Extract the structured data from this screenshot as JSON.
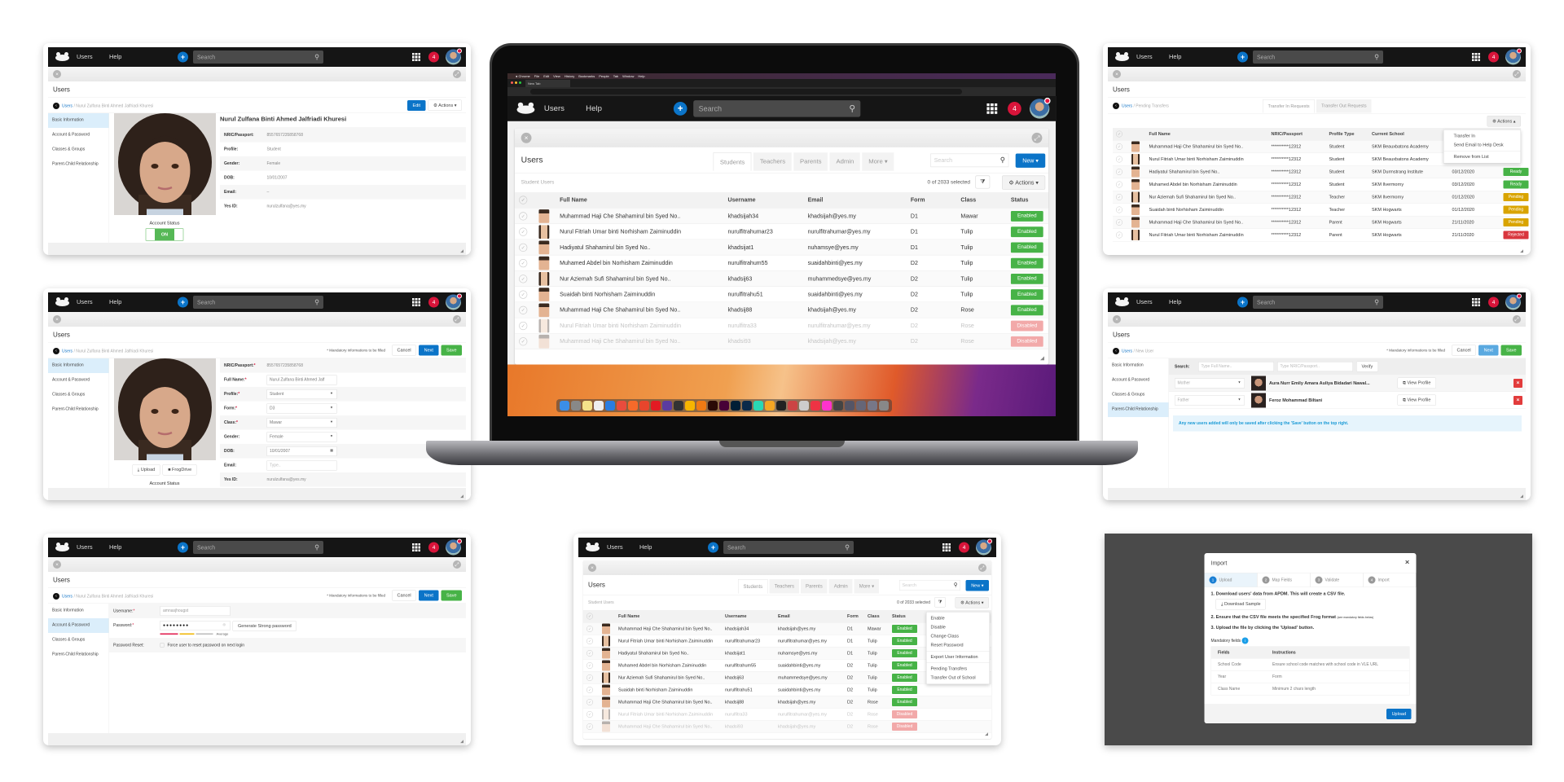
{
  "nav": {
    "title": "Users",
    "help": "Help",
    "search_placeholder": "Search",
    "notif_count": "4"
  },
  "common": {
    "page_title": "Users",
    "breadcrumb_root": "Users",
    "actions": "Actions",
    "edit": "Edit",
    "cancel": "Cancel",
    "next": "Next",
    "save": "Save",
    "mandatory_note": "* Mandatory informations to be filled",
    "sidebar": [
      "Basic Information",
      "Account & Password",
      "Classes & Groups",
      "Parent-Child Relationship"
    ]
  },
  "profile": {
    "breadcrumb_current": "Nurul Zulfana Binti Ahmed Jalfriadi Khuresi",
    "name": "Nurul Zulfana Binti Ahmed Jalfriadi Khuresi",
    "fields": [
      {
        "label": "NRIC/Passport:",
        "value": "8557657235858768"
      },
      {
        "label": "Profile:",
        "value": "Student"
      },
      {
        "label": "Gender:",
        "value": "Female"
      },
      {
        "label": "DOB:",
        "value": "10/01/2007"
      },
      {
        "label": "Email:",
        "value": "–"
      },
      {
        "label": "Yes ID:",
        "value": "nurulzulfana@yes.my"
      }
    ],
    "account_status": "Account Status",
    "toggle_on": "ON"
  },
  "edit_form": {
    "nric_label": "NRIC/Passport:",
    "nric_value": "8557657235858768",
    "fullname_label": "Full Name:",
    "fullname_value": "Nurul Zulfana Binti Ahmed Jalf",
    "profile_label": "Profile:",
    "profile_value": "Student",
    "form_label": "Form:",
    "form_value": "D3",
    "class_label": "Class:",
    "class_value": "Mawar",
    "gender_label": "Gender:",
    "gender_value": "Female",
    "dob_label": "DOB:",
    "dob_value": "10/01/2007",
    "email_label": "Email:",
    "email_placeholder": "Type..",
    "yesid_label": "Yes ID:",
    "yesid_value": "nurulzulfana@yes.my",
    "upload": "Upload",
    "frogdrive": "FrogDrive"
  },
  "account": {
    "username_label": "Username:",
    "username_value": "amnasjhougst",
    "password_label": "Password:",
    "password_value": "●●●●●●●●",
    "generate": "Generate Strong password",
    "strength": "Average",
    "reset_label": "Password Reset:",
    "reset_option": "Force user to reset password on next login"
  },
  "transfers": {
    "breadcrumb_current": "Pending Transfers",
    "tabs": [
      "Transfer In Requests",
      "Transfer Out Requests"
    ],
    "menu": [
      "Transfer In",
      "Send Email to Help Desk",
      "Remove from List"
    ],
    "columns": [
      "Full Name",
      "NRIC/Passport",
      "Profile Type",
      "Current School"
    ],
    "rows": [
      {
        "name": "Muhammad Haji Che Shahamirul bin Syed No..",
        "nric": "**********12312",
        "type": "Student",
        "school": "SKM Beauxbatons Academy",
        "f": false
      },
      {
        "name": "Nurul Fitriah Umar binti Norhisham Zaiminuddin",
        "nric": "**********12312",
        "type": "Student",
        "school": "SKM Beauxbatons Academy",
        "f": true
      },
      {
        "name": "Hadiyatul Shahamirul bin Syed No..",
        "nric": "**********12312",
        "type": "Student",
        "school": "SKM Durmstrang Institute",
        "date": "03/12/2020",
        "status": "Ready",
        "f": false
      },
      {
        "name": "Muhamed Abdel bin Norhisham Zaiminuddin",
        "nric": "**********12312",
        "type": "Student",
        "school": "SKM Ilvermorny",
        "date": "03/12/2020",
        "status": "Ready",
        "f": false
      },
      {
        "name": "Nur Aziemah Sufi Shahamirul bin Syed No..",
        "nric": "**********12312",
        "type": "Teacher",
        "school": "SKM Ilvermorny",
        "date": "01/12/2020",
        "status": "Pending",
        "f": true
      },
      {
        "name": "Suaidah binti Norhisham Zaiminuddin",
        "nric": "**********12312",
        "type": "Teacher",
        "school": "SKM Hogwarts",
        "date": "01/12/2020",
        "status": "Pending",
        "f": false
      },
      {
        "name": "Muhammad Haji Che Shahamirul bin Syed No..",
        "nric": "**********12312",
        "type": "Parent",
        "school": "SKM Hogwarts",
        "date": "21/11/2020",
        "status": "Pending",
        "f": false
      },
      {
        "name": "Nurul Fitriah Umar binti Norhisham Zaiminuddin",
        "nric": "**********12312",
        "type": "Parent",
        "school": "SKM Hogwarts",
        "date": "21/11/2020",
        "status": "Rejected",
        "f": true
      }
    ]
  },
  "parent_child": {
    "breadcrumb_current": "New User",
    "search_label": "Search:",
    "name_placeholder": "Type Full Name..",
    "nric_placeholder": "Type NRIC/Passport..",
    "verify": "Verify",
    "view_profile": "View Profile",
    "relations": [
      {
        "role": "Mother",
        "name": "Aura Nurr Emily Amara Auliya Bidadari Nawal..."
      },
      {
        "role": "Father",
        "name": "Feroz Mohammad Biltani"
      }
    ],
    "info": "Any new users added will only be saved after clicking the 'Save' button on the top right."
  },
  "users": {
    "tabs": [
      "Students",
      "Teachers",
      "Parents",
      "Admin",
      "More"
    ],
    "search_placeholder": "Search",
    "new": "New",
    "subtitle": "Student Users",
    "selected": "0 of 2033 selected",
    "columns": [
      "Full Name",
      "Username",
      "Email",
      "Form",
      "Class",
      "Status"
    ],
    "actions_menu": [
      "Enable",
      "Disable",
      "Change Class",
      "Reset Password",
      "Export User Information",
      "Pending Transfers",
      "Transfer Out of School"
    ],
    "rows": [
      {
        "name": "Muhammad Haji Che Shahamirul bin Syed No..",
        "username": "khadsijah34",
        "email": "khadsijah@yes.my",
        "form": "D1",
        "class": "Mawar",
        "status": "Enabled",
        "f": false
      },
      {
        "name": "Nurul Fitriah Umar binti Norhisham Zaiminuddin",
        "username": "nurulfitrahumar23",
        "email": "nurulfitrahumar@yes.my",
        "form": "D1",
        "class": "Tulip",
        "status": "Enabled",
        "f": true
      },
      {
        "name": "Hadiyatul Shahamirul bin Syed No..",
        "username": "khadsijat1",
        "email": "nuhamsye@yes.my",
        "form": "D1",
        "class": "Tulip",
        "status": "Enabled",
        "f": false
      },
      {
        "name": "Muhamed Abdel bin Norhisham Zaiminuddin",
        "username": "nurulfitrahum55",
        "email": "suaidahbinti@yes.my",
        "form": "D2",
        "class": "Tulip",
        "status": "Enabled",
        "f": false
      },
      {
        "name": "Nur Aziemah Sufi Shahamirul bin Syed No..",
        "username": "khadsij63",
        "email": "muhammedsye@yes.my",
        "form": "D2",
        "class": "Tulip",
        "status": "Enabled",
        "f": true
      },
      {
        "name": "Suaidah binti Norhisham Zaiminuddin",
        "username": "nurulfitrahu51",
        "email": "suaidahbinti@yes.my",
        "form": "D2",
        "class": "Tulip",
        "status": "Enabled",
        "f": false
      },
      {
        "name": "Muhammad Haji Che Shahamirul bin Syed No..",
        "username": "khadsij88",
        "email": "khadsijah@yes.my",
        "form": "D2",
        "class": "Rose",
        "status": "Enabled",
        "f": false
      },
      {
        "name": "Nurul Fitriah Umar binti Norhisham Zaiminuddin",
        "username": "nurulfitra33",
        "email": "nurulfitrahumar@yes.my",
        "form": "D2",
        "class": "Rose",
        "status": "Disabled",
        "f": true
      },
      {
        "name": "Muhammad Haji Che Shahamirul bin Syed No..",
        "username": "khadsi93",
        "email": "khadsijah@yes.my",
        "form": "D2",
        "class": "Rose",
        "status": "Disabled",
        "f": false
      }
    ]
  },
  "import": {
    "title": "Import",
    "steps": [
      "Upload",
      "Map Fields",
      "Validate",
      "Import"
    ],
    "step1": "1. Download users' data from APDM. This will create a CSV file.",
    "download": "Download Sample",
    "step2": "2. Ensure that the CSV file meets the specified Frog format",
    "step2_note": "(see mandatory fields below)",
    "step3": "3. Upload the file by clicking the 'Upload' button.",
    "mandatory": "Mandatory fields",
    "columns": [
      "Fields",
      "Instructions"
    ],
    "rows": [
      {
        "field": "School Code",
        "instruction": "Ensure school code matches with school code in VLE URL"
      },
      {
        "field": "Year",
        "instruction": "Form"
      },
      {
        "field": "Class Name",
        "instruction": "Minimum 2 chars length"
      }
    ],
    "upload": "Upload"
  },
  "browser": {
    "menu": [
      "Chrome",
      "File",
      "Edit",
      "View",
      "History",
      "Bookmarks",
      "People",
      "Tab",
      "Window",
      "Help"
    ],
    "tab": "New Tab"
  },
  "colors": {
    "accent": "#0b74c8",
    "enabled": "#47b347",
    "disabled": "#f2a9a9",
    "ready": "#47b347",
    "pending": "#d9a400",
    "rejected": "#d9363e",
    "badge": "#d8143a"
  },
  "dock": {
    "icon_colors": [
      "#3b8ee8",
      "#888",
      "#f4e28a",
      "#eee",
      "#2a7de1",
      "#e84c3d",
      "#f56a2a",
      "#e8452c",
      "#e31b23",
      "#5a3ca0",
      "#333",
      "#f7b500",
      "#f07a14",
      "#2b0a06",
      "#470137",
      "#001e36",
      "#0a2a4a",
      "#2ad8b4",
      "#f5a623",
      "#222",
      "#c44",
      "#ccc",
      "#e34",
      "#f3c",
      "#444",
      "#556",
      "#667",
      "#778",
      "#888"
    ]
  }
}
